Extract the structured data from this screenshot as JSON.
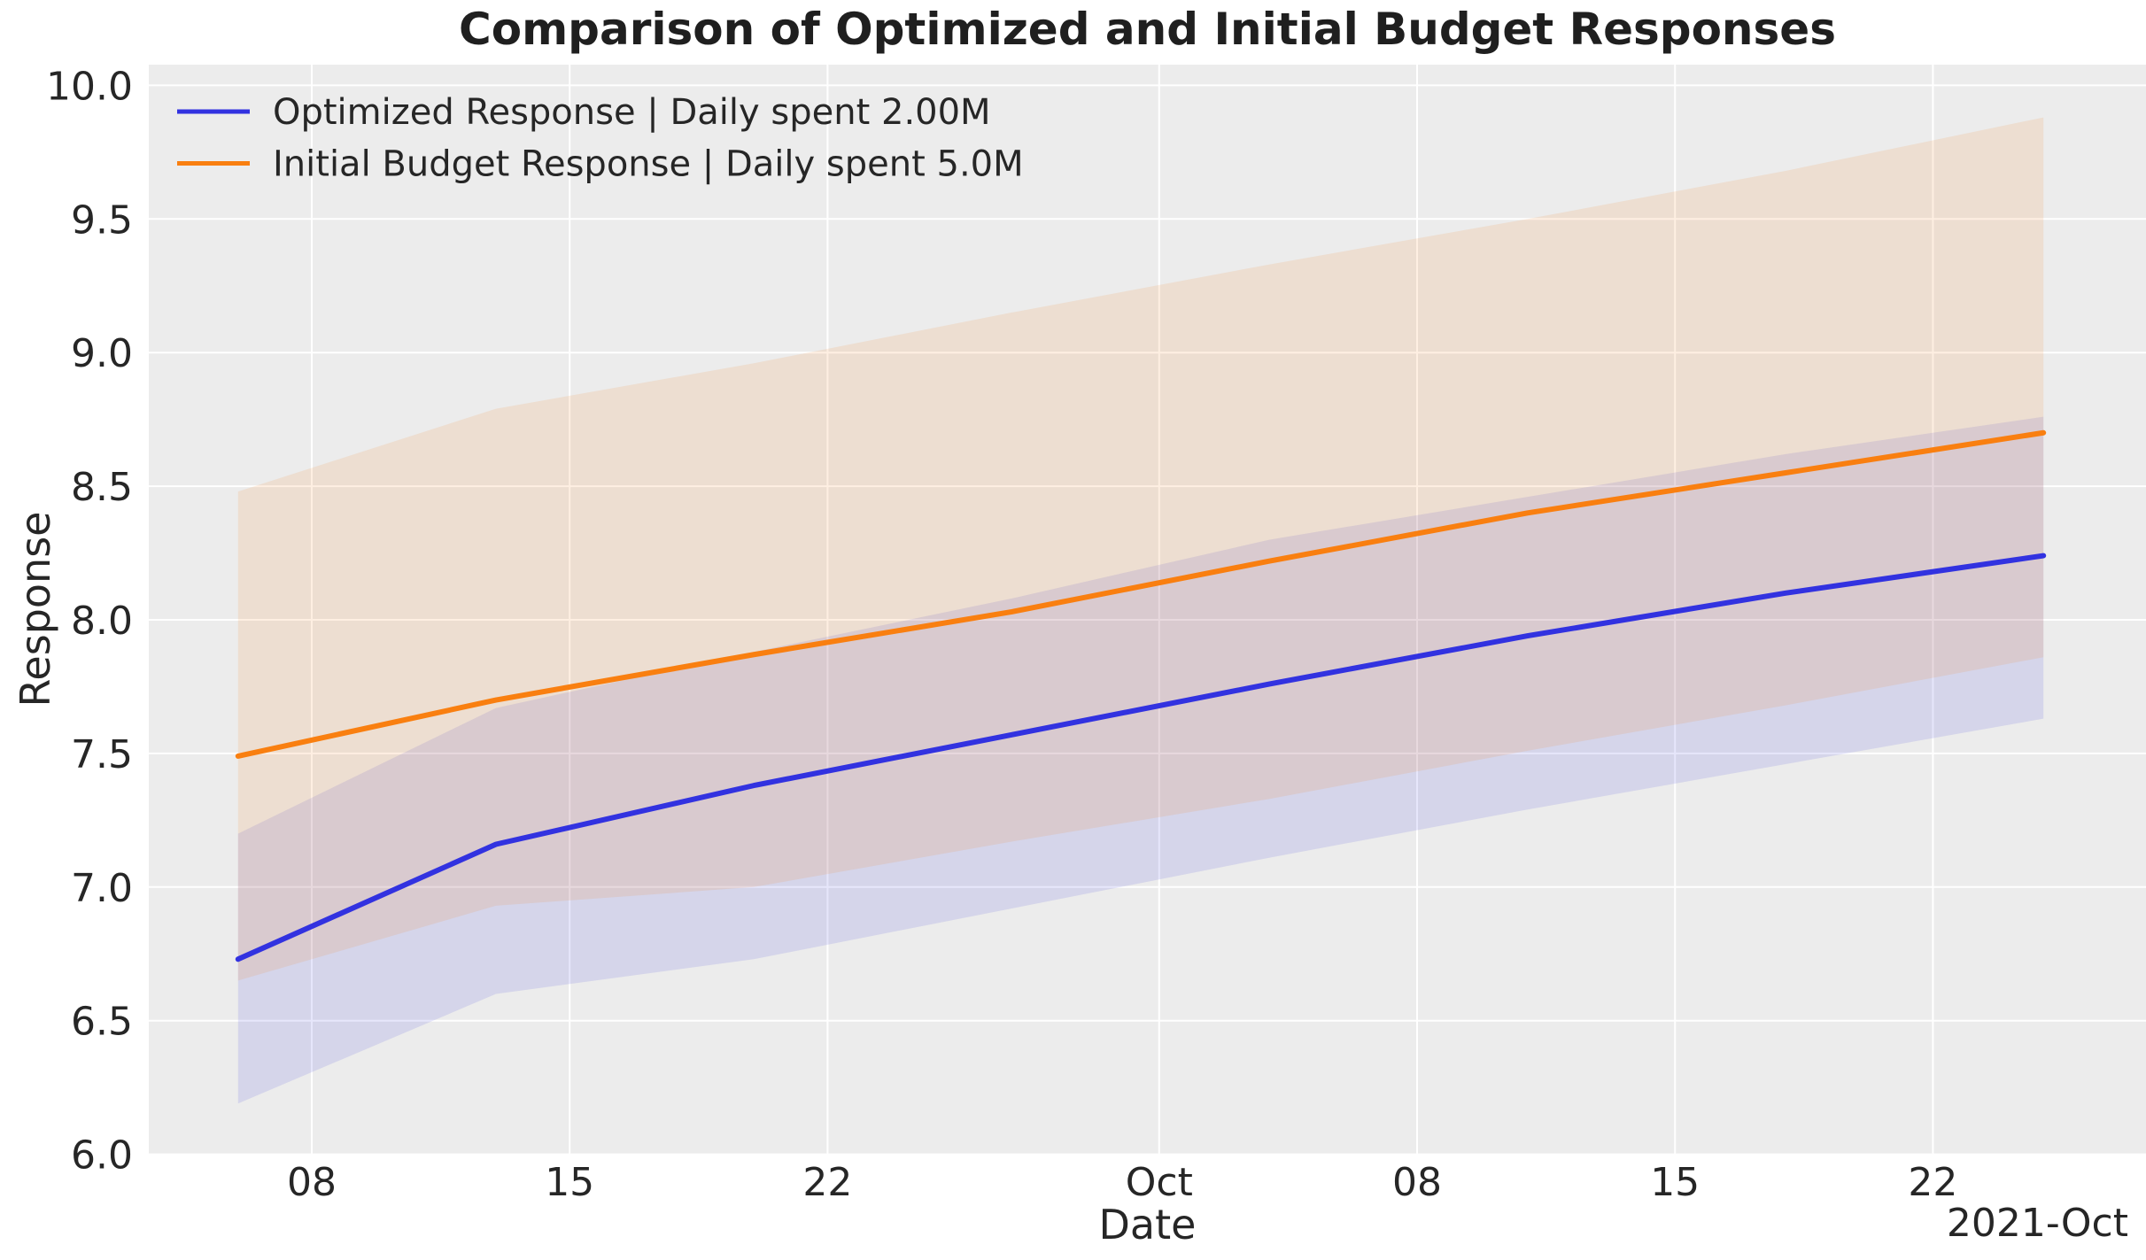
{
  "chart_data": {
    "type": "line",
    "title": "Comparison of Optimized and Initial Budget Responses",
    "xlabel": "Date",
    "ylabel": "Response",
    "x_offset_label": "2021-Oct",
    "x": [
      "2021-09-06",
      "2021-09-13",
      "2021-09-20",
      "2021-09-27",
      "2021-10-04",
      "2021-10-11",
      "2021-10-18",
      "2021-10-25"
    ],
    "x_days": [
      0,
      7,
      14,
      21,
      28,
      35,
      42,
      49
    ],
    "series": [
      {
        "name": "Optimized Response | Daily spent 2.00M",
        "color": "#3232e0",
        "values": [
          6.73,
          7.16,
          7.38,
          7.57,
          7.76,
          7.94,
          8.1,
          8.24
        ],
        "band_low": [
          6.19,
          6.6,
          6.73,
          6.92,
          7.11,
          7.29,
          7.46,
          7.63
        ],
        "band_high": [
          7.2,
          7.67,
          7.88,
          8.08,
          8.3,
          8.46,
          8.62,
          8.76
        ]
      },
      {
        "name": "Initial Budget Response | Daily spent 5.0M",
        "color": "#f97f10",
        "values": [
          7.49,
          7.7,
          7.87,
          8.03,
          8.22,
          8.4,
          8.55,
          8.7
        ],
        "band_low": [
          6.65,
          6.93,
          7.0,
          7.17,
          7.33,
          7.51,
          7.68,
          7.86
        ],
        "band_high": [
          8.48,
          8.79,
          8.96,
          9.15,
          9.33,
          9.5,
          9.68,
          9.88
        ]
      }
    ],
    "x_ticks": [
      {
        "day": 2,
        "label": "08"
      },
      {
        "day": 9,
        "label": "15"
      },
      {
        "day": 16,
        "label": "22"
      },
      {
        "day": 25,
        "label": "Oct"
      },
      {
        "day": 32,
        "label": "08"
      },
      {
        "day": 39,
        "label": "15"
      },
      {
        "day": 46,
        "label": "22"
      }
    ],
    "y_ticks": [
      {
        "value": 6.0,
        "label": "6.0"
      },
      {
        "value": 6.5,
        "label": "6.5"
      },
      {
        "value": 7.0,
        "label": "7.0"
      },
      {
        "value": 7.5,
        "label": "7.5"
      },
      {
        "value": 8.0,
        "label": "8.0"
      },
      {
        "value": 8.5,
        "label": "8.5"
      },
      {
        "value": 9.0,
        "label": "9.0"
      },
      {
        "value": 9.5,
        "label": "9.5"
      },
      {
        "value": 10.0,
        "label": "10.0"
      }
    ],
    "ylim": [
      6.0,
      10.0
    ],
    "grid": true,
    "legend_position": "upper left",
    "plot_background": "#ececec",
    "gridline_color": "#ffffff",
    "text_color": "#262626",
    "band_alpha": 0.12
  }
}
